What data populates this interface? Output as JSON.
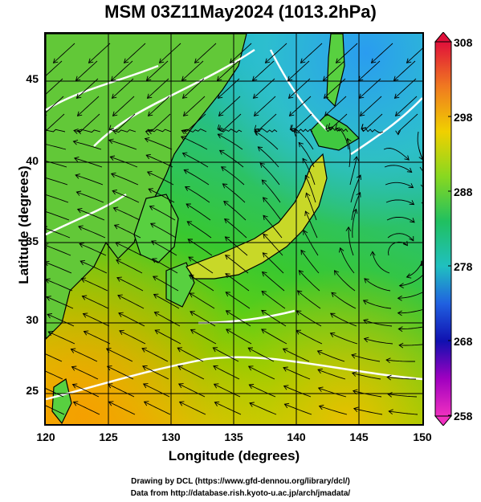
{
  "title": "MSM 03Z11May2024 (1013.2hPa)",
  "map": {
    "xlabel": "Longitude (degrees)",
    "ylabel": "Latitude  (degrees)",
    "x_range": [
      120,
      150
    ],
    "y_range": [
      22.5,
      47.5
    ],
    "x_ticks": [
      "120",
      "125",
      "130",
      "135",
      "140",
      "145",
      "150"
    ],
    "y_ticks": [
      "25",
      "30",
      "35",
      "40",
      "45"
    ],
    "field": "potential temperature (K) shading with streamlines",
    "colors": {
      "ocean_warm": "#f5b100",
      "ocean_mid": "#7bd300",
      "ocean_cool": "#2fb0e0",
      "land_outline": "#000000",
      "contours": "#ffffff",
      "streamlines": "#000000"
    }
  },
  "colorbar": {
    "ticks": [
      "308",
      "298",
      "288",
      "278",
      "268",
      "258"
    ],
    "colors": [
      "#e0103a",
      "#f07a20",
      "#f0d000",
      "#88d820",
      "#20c060",
      "#20c0c0",
      "#2060e0",
      "#1010b0",
      "#a000c0",
      "#f030c0"
    ]
  },
  "credits": {
    "line1": "Drawing by DCL (https://www.gfd-dennou.org/library/dcl/)",
    "line2": "Data from http://database.rish.kyoto-u.ac.jp/arch/jmadata/"
  }
}
